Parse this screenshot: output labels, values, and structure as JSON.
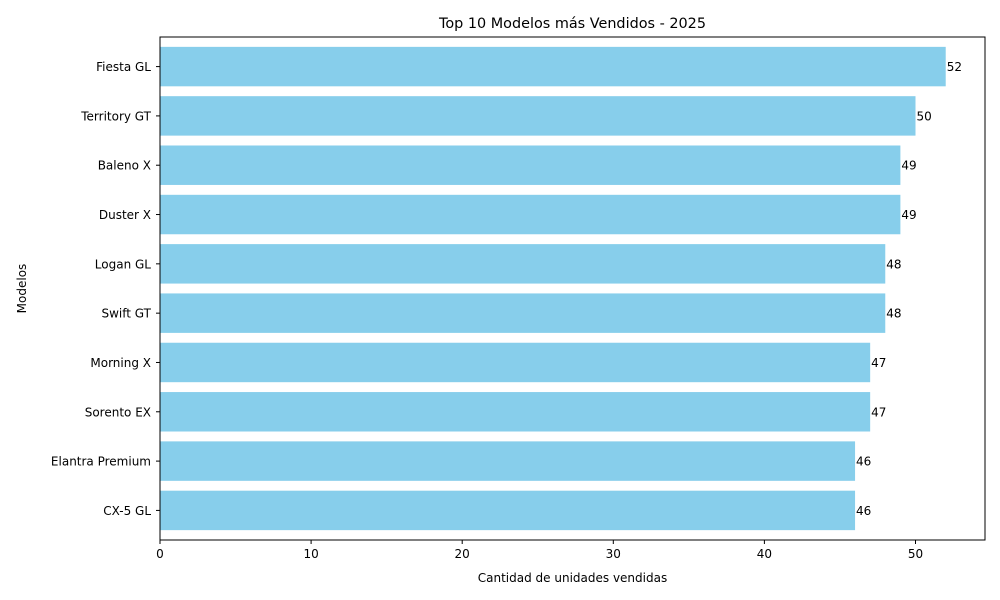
{
  "chart_data": {
    "type": "bar",
    "orientation": "horizontal",
    "title": "Top 10 Modelos más Vendidos - 2025",
    "xlabel": "Cantidad de unidades vendidas",
    "ylabel": "Modelos",
    "categories": [
      "Fiesta GL",
      "Territory GT",
      "Baleno X",
      "Duster X",
      "Logan GL",
      "Swift GT",
      "Morning X",
      "Sorento EX",
      "Elantra Premium",
      "CX-5 GL"
    ],
    "values": [
      52,
      50,
      49,
      49,
      48,
      48,
      47,
      47,
      46,
      46
    ],
    "xlim": [
      0,
      54.6
    ],
    "xticks": [
      0,
      10,
      20,
      30,
      40,
      50
    ],
    "bar_color": "#87CEEB",
    "grid": false,
    "data_labels": true
  }
}
